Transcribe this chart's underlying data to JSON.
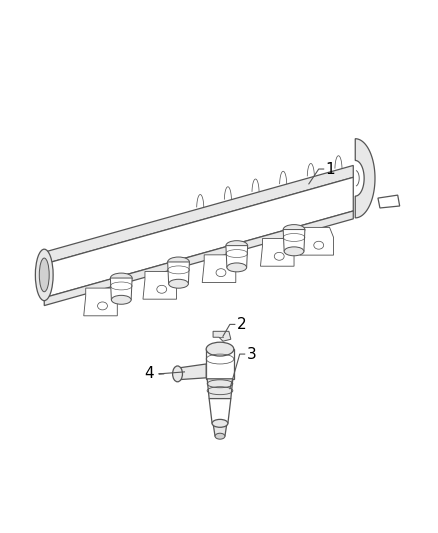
{
  "background_color": "#ffffff",
  "line_color": "#555555",
  "label_color": "#000000",
  "fig_width": 4.38,
  "fig_height": 5.33,
  "dpi": 100,
  "lw": 0.9,
  "fill_color": "#ffffff",
  "shade_color": "#e8e8e8",
  "dark_shade": "#d0d0d0"
}
